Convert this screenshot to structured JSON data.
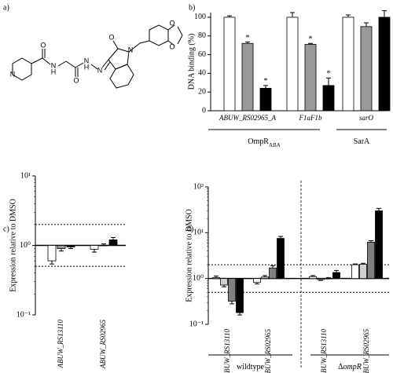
{
  "panel_labels": [
    "a)",
    "b)",
    "c)",
    "d)"
  ],
  "structure": {
    "atoms": [
      "N",
      "O",
      "N",
      "H",
      "O",
      "N",
      "H",
      "N",
      "O",
      "N",
      "O",
      "O"
    ]
  },
  "chart_data": [
    {
      "type": "bar",
      "ylabel": "DNA binding (%)",
      "categories": [
        "ABUW_RS02965_A",
        "F1aF1b",
        "sarO"
      ],
      "series": [
        {
          "color": "#ffffff",
          "values": [
            100,
            100,
            100
          ],
          "errors": [
            1.5,
            5,
            2.5
          ]
        },
        {
          "color": "#999999",
          "values": [
            72,
            71,
            90
          ],
          "errors": [
            1.5,
            1,
            4
          ],
          "markers": [
            "*",
            "*",
            null
          ]
        },
        {
          "color": "#000000",
          "values": [
            24,
            27,
            100
          ],
          "errors": [
            3,
            8,
            7
          ],
          "markers": [
            "*",
            "*",
            null
          ]
        }
      ],
      "ylim": [
        0,
        105
      ],
      "yticks": [
        0,
        20,
        40,
        60,
        80,
        100
      ],
      "groups": [
        {
          "label": "OmpR",
          "sub": "ABA"
        },
        {
          "label": "SarA"
        }
      ]
    },
    {
      "type": "bar",
      "log": true,
      "ylabel": "Expression relative to DMSO",
      "categories": [
        "ABUW_RS13110",
        "ABUW_RS02965"
      ],
      "series": [
        {
          "color": "#ffffff",
          "values": [
            0.6,
            0.88
          ],
          "errors": [
            0.06,
            0.08
          ]
        },
        {
          "color": "#999999",
          "values": [
            0.9,
            1.0
          ],
          "errors": [
            0.07,
            0.05
          ]
        },
        {
          "color": "#000000",
          "values": [
            0.95,
            1.2
          ],
          "errors": [
            0.05,
            0.1
          ]
        }
      ],
      "ylim": [
        0.1,
        10
      ],
      "yticks": [
        {
          "value": 0.1,
          "label": "10⁻¹"
        },
        {
          "value": 1,
          "label": "10⁰"
        },
        {
          "value": 10,
          "label": "10¹"
        }
      ],
      "reference_lines": [
        2,
        0.5
      ]
    },
    {
      "type": "bar",
      "log": true,
      "ylabel": "Expression relative to DMSO",
      "categories": [
        "ABUW_RS13110",
        "ABUW_RS02965",
        "ABUW_RS13110",
        "ABUW_RS02965"
      ],
      "series": [
        {
          "color": "#ffffff",
          "values": [
            1.05,
            0.82,
            1.1,
            2.0
          ],
          "errors": [
            0.08,
            0.06,
            0.06,
            0.08
          ]
        },
        {
          "color": "#d0d0d0",
          "values": [
            0.72,
            1.08,
            0.95,
            2.05
          ],
          "errors": [
            0.06,
            0.08,
            0.04,
            0.1
          ]
        },
        {
          "color": "#808080",
          "values": [
            0.32,
            1.7,
            1.0,
            6.2
          ],
          "errors": [
            0.04,
            0.2,
            0.04,
            0.5
          ]
        },
        {
          "color": "#000000",
          "values": [
            0.18,
            7.5,
            1.35,
            30
          ],
          "errors": [
            0.02,
            0.8,
            0.15,
            4
          ]
        }
      ],
      "ylim": [
        0.1,
        100
      ],
      "yticks": [
        {
          "value": 0.1,
          "label": "10⁻¹"
        },
        {
          "value": 1,
          "label": "10⁰"
        },
        {
          "value": 10,
          "label": "10¹"
        },
        {
          "value": 100,
          "label": "10²"
        }
      ],
      "reference_lines": [
        2,
        0.5
      ],
      "groups": [
        {
          "label": "wildtype"
        },
        {
          "label": "Δ",
          "italic": "ompR"
        }
      ]
    }
  ]
}
